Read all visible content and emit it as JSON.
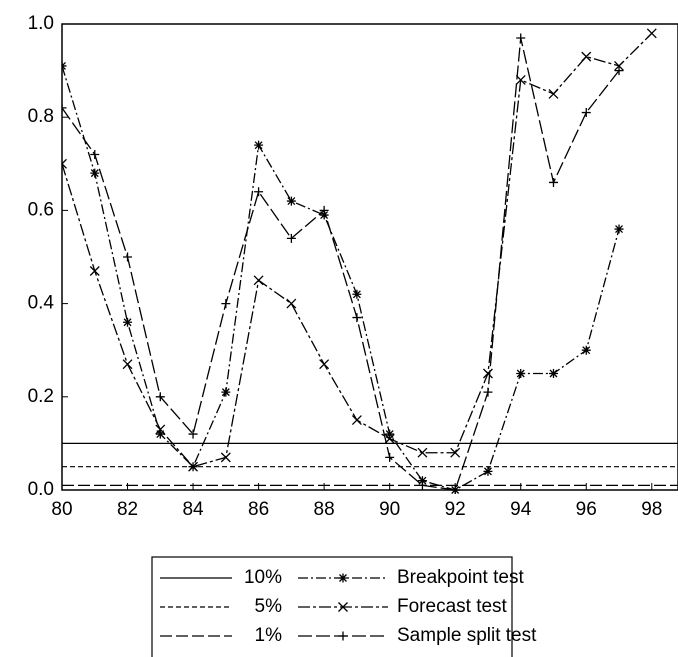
{
  "chart_data": {
    "type": "line",
    "x": [
      80,
      81,
      82,
      83,
      84,
      85,
      86,
      87,
      88,
      89,
      90,
      91,
      92,
      93,
      94,
      95,
      96,
      97,
      98
    ],
    "xlim": [
      80,
      98.8
    ],
    "xticks": [
      80,
      82,
      84,
      86,
      88,
      90,
      92,
      94,
      96,
      98
    ],
    "ylim": [
      0,
      1
    ],
    "yticks": [
      {
        "value": 0,
        "label": "0.0"
      },
      0.2,
      0.4,
      0.6,
      0.8,
      {
        "value": 1,
        "label": "1.0"
      }
    ],
    "hlines": [
      {
        "name": "10%",
        "value": 0.1,
        "dash": "none"
      },
      {
        "name": "5%",
        "value": 0.05,
        "dash": "5 3"
      },
      {
        "name": "1%",
        "value": 0.01,
        "dash": "12 4"
      }
    ],
    "series": [
      {
        "name": "Breakpoint test",
        "color": "#000",
        "marker": "asterisk",
        "dash": "10 3 2 3",
        "values": [
          0.91,
          0.68,
          0.36,
          0.12,
          0.05,
          0.21,
          0.74,
          0.62,
          0.59,
          0.42,
          0.12,
          0.02,
          0.0,
          0.04,
          0.25,
          0.25,
          0.3,
          0.56,
          null
        ]
      },
      {
        "name": "Forecast test",
        "color": "#000",
        "marker": "cross",
        "dash": "12 3 3 3",
        "values": [
          0.7,
          0.47,
          0.27,
          0.13,
          0.05,
          0.07,
          0.45,
          0.4,
          0.27,
          0.15,
          0.11,
          0.08,
          0.08,
          0.25,
          0.88,
          0.85,
          0.93,
          0.91,
          0.98
        ]
      },
      {
        "name": "Sample split test",
        "color": "#000",
        "marker": "plus",
        "dash": "14 4",
        "values": [
          0.82,
          0.72,
          0.5,
          0.2,
          0.12,
          0.4,
          0.64,
          0.54,
          0.6,
          0.37,
          0.07,
          0.01,
          0.0,
          0.21,
          0.97,
          0.66,
          0.81,
          0.9,
          null
        ]
      }
    ]
  }
}
